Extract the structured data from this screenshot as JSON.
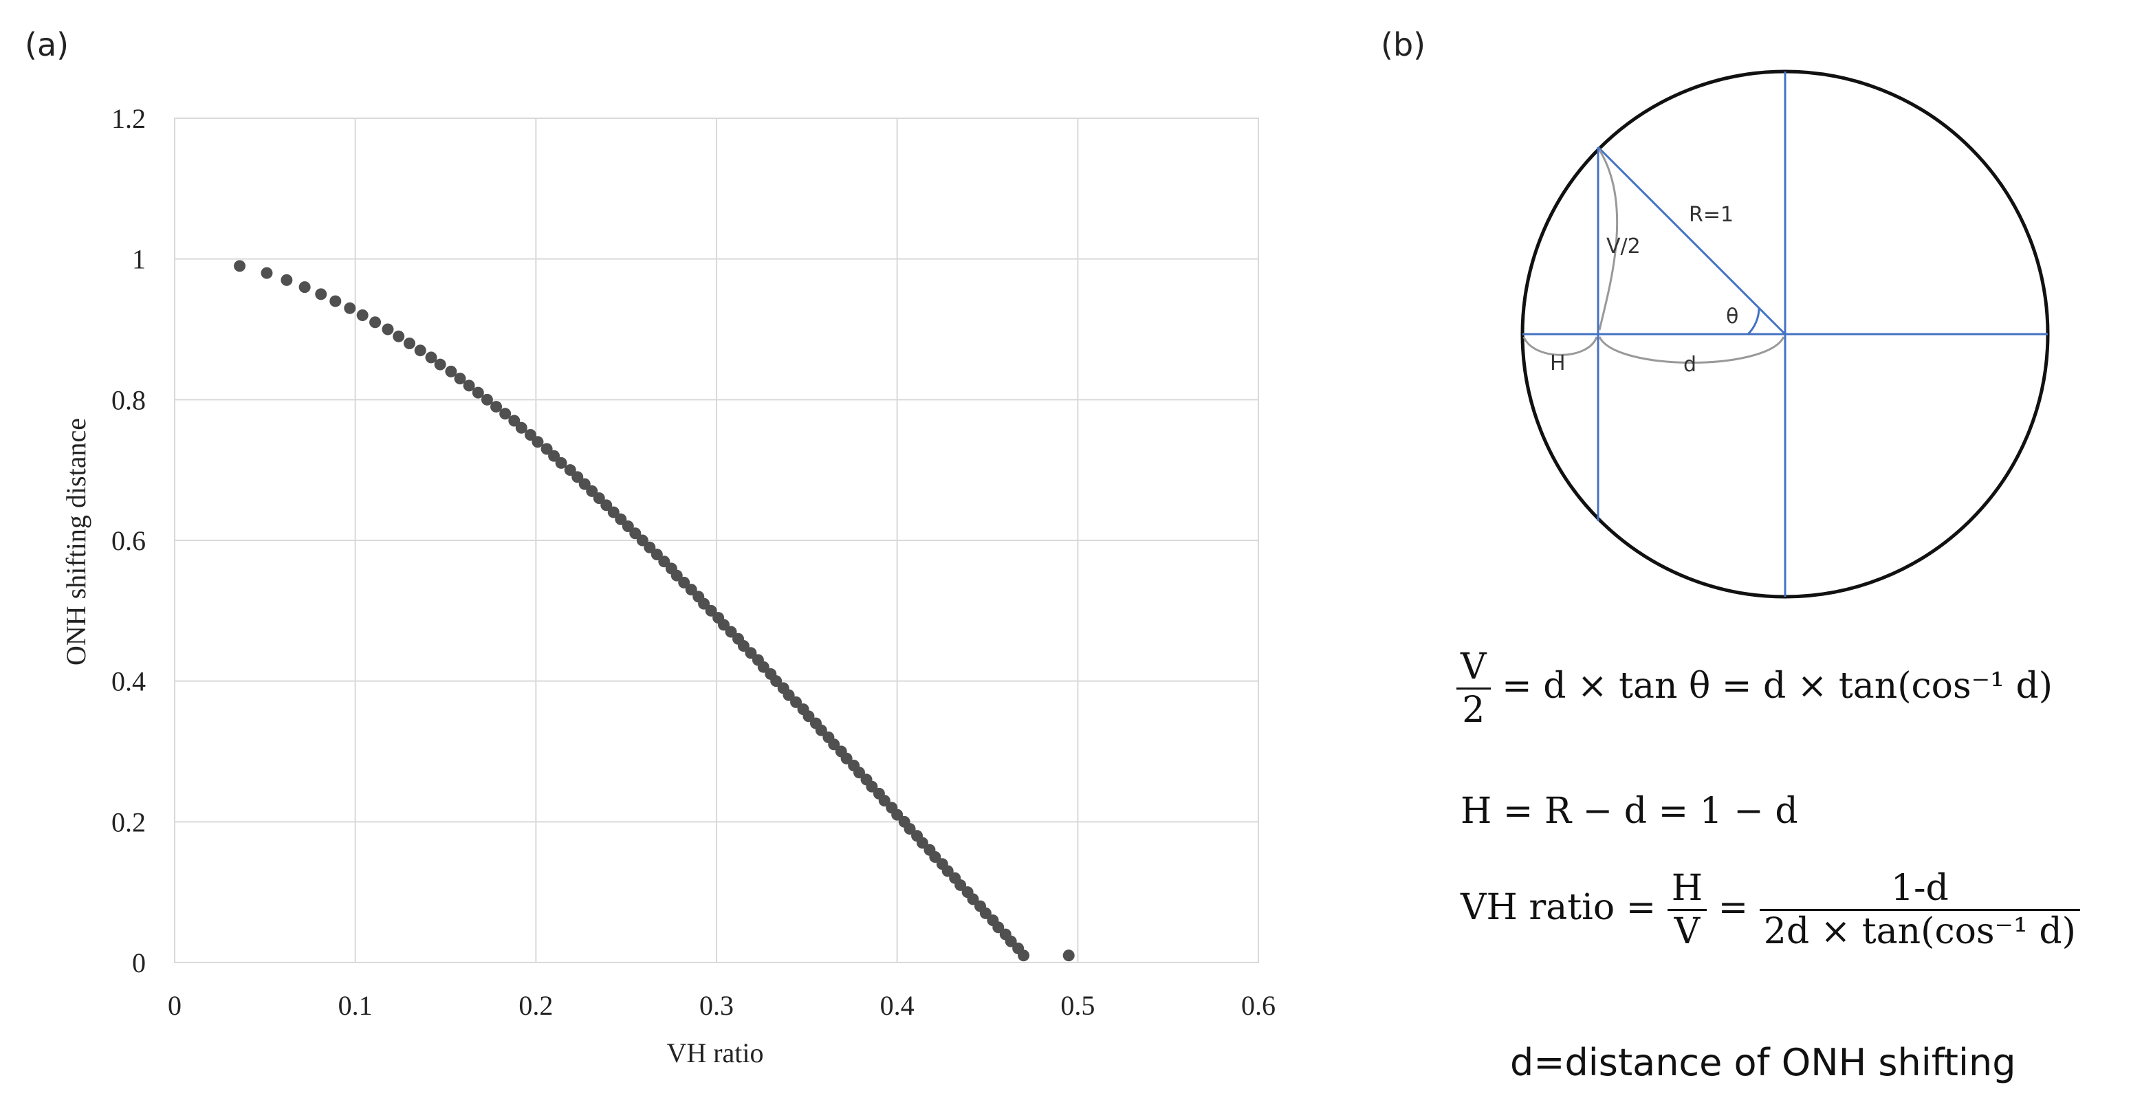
{
  "panels": {
    "a": "(a)",
    "b": "(b)"
  },
  "chart_data": {
    "type": "scatter",
    "xlabel": "VH ratio",
    "ylabel": "ONH shifting distance",
    "xlim": [
      0,
      0.6
    ],
    "ylim": [
      0,
      1.2
    ],
    "x_ticks": [
      "0",
      "0.1",
      "0.2",
      "0.3",
      "0.4",
      "0.5",
      "0.6"
    ],
    "y_ticks": [
      "0",
      "0.2",
      "0.4",
      "0.6",
      "0.8",
      "1",
      "1.2"
    ],
    "grid": true,
    "marker_color": "#505050",
    "series": [
      {
        "points": [
          [
            0.036,
            0.99
          ],
          [
            0.051,
            0.98
          ],
          [
            0.062,
            0.97
          ],
          [
            0.072,
            0.96
          ],
          [
            0.081,
            0.95
          ],
          [
            0.089,
            0.94
          ],
          [
            0.097,
            0.93
          ],
          [
            0.104,
            0.92
          ],
          [
            0.111,
            0.91
          ],
          [
            0.118,
            0.9
          ],
          [
            0.124,
            0.89
          ],
          [
            0.13,
            0.88
          ],
          [
            0.136,
            0.87
          ],
          [
            0.142,
            0.86
          ],
          [
            0.147,
            0.85
          ],
          [
            0.153,
            0.84
          ],
          [
            0.158,
            0.83
          ],
          [
            0.163,
            0.82
          ],
          [
            0.168,
            0.81
          ],
          [
            0.173,
            0.8
          ],
          [
            0.178,
            0.79
          ],
          [
            0.183,
            0.78
          ],
          [
            0.188,
            0.77
          ],
          [
            0.192,
            0.76
          ],
          [
            0.197,
            0.75
          ],
          [
            0.201,
            0.74
          ],
          [
            0.206,
            0.73
          ],
          [
            0.21,
            0.72
          ],
          [
            0.214,
            0.71
          ],
          [
            0.219,
            0.7
          ],
          [
            0.223,
            0.69
          ],
          [
            0.227,
            0.68
          ],
          [
            0.231,
            0.67
          ],
          [
            0.235,
            0.66
          ],
          [
            0.239,
            0.65
          ],
          [
            0.243,
            0.64
          ],
          [
            0.247,
            0.63
          ],
          [
            0.251,
            0.62
          ],
          [
            0.255,
            0.61
          ],
          [
            0.259,
            0.6
          ],
          [
            0.263,
            0.59
          ],
          [
            0.267,
            0.58
          ],
          [
            0.271,
            0.57
          ],
          [
            0.275,
            0.56
          ],
          [
            0.278,
            0.55
          ],
          [
            0.282,
            0.54
          ],
          [
            0.286,
            0.53
          ],
          [
            0.29,
            0.52
          ],
          [
            0.293,
            0.51
          ],
          [
            0.297,
            0.5
          ],
          [
            0.301,
            0.49
          ],
          [
            0.304,
            0.48
          ],
          [
            0.308,
            0.47
          ],
          [
            0.312,
            0.46
          ],
          [
            0.315,
            0.45
          ],
          [
            0.319,
            0.44
          ],
          [
            0.323,
            0.43
          ],
          [
            0.326,
            0.42
          ],
          [
            0.33,
            0.41
          ],
          [
            0.333,
            0.4
          ],
          [
            0.337,
            0.39
          ],
          [
            0.34,
            0.38
          ],
          [
            0.344,
            0.37
          ],
          [
            0.348,
            0.36
          ],
          [
            0.351,
            0.35
          ],
          [
            0.355,
            0.34
          ],
          [
            0.358,
            0.33
          ],
          [
            0.362,
            0.32
          ],
          [
            0.365,
            0.31
          ],
          [
            0.369,
            0.3
          ],
          [
            0.372,
            0.29
          ],
          [
            0.376,
            0.28
          ],
          [
            0.379,
            0.27
          ],
          [
            0.383,
            0.26
          ],
          [
            0.386,
            0.25
          ],
          [
            0.39,
            0.24
          ],
          [
            0.393,
            0.23
          ],
          [
            0.397,
            0.22
          ],
          [
            0.4,
            0.21
          ],
          [
            0.404,
            0.2
          ],
          [
            0.407,
            0.19
          ],
          [
            0.411,
            0.18
          ],
          [
            0.414,
            0.17
          ],
          [
            0.418,
            0.16
          ],
          [
            0.421,
            0.15
          ],
          [
            0.425,
            0.14
          ],
          [
            0.428,
            0.13
          ],
          [
            0.432,
            0.12
          ],
          [
            0.435,
            0.11
          ],
          [
            0.439,
            0.1
          ],
          [
            0.442,
            0.09
          ],
          [
            0.446,
            0.08
          ],
          [
            0.449,
            0.07
          ],
          [
            0.453,
            0.06
          ],
          [
            0.456,
            0.05
          ],
          [
            0.46,
            0.04
          ],
          [
            0.463,
            0.03
          ],
          [
            0.467,
            0.02
          ],
          [
            0.47,
            0.01
          ],
          [
            0.495,
            0.01
          ]
        ]
      }
    ]
  },
  "diagram": {
    "circle_color": "#111111",
    "line_color": "#4472C4",
    "bracket_color": "#999999",
    "labels": {
      "r": "R=1",
      "v_half": "V/2",
      "theta": "θ",
      "h": "H",
      "d": "d"
    }
  },
  "formulas": {
    "f1_num": "V",
    "f1_den": "2",
    "f1_rest": " = d × tan θ = d × tan(cos⁻¹ d)",
    "f2": "H = R − d = 1 − d",
    "f3_lhs": "VH ratio = ",
    "f3_num1": "H",
    "f3_den1": "V",
    "f3_eq": " = ",
    "f3_num2": "1-d",
    "f3_den2": "2d × tan(cos⁻¹ d)"
  },
  "caption": "d=distance of ONH shifting"
}
